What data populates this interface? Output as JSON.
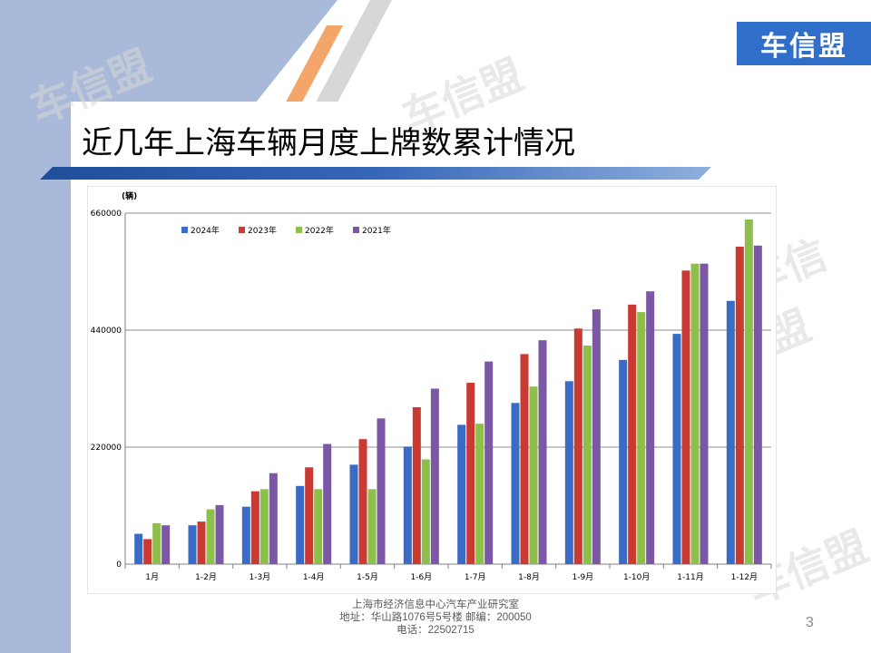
{
  "brand": {
    "logo_text": "车信盟"
  },
  "watermark_text": "车信盟",
  "slide": {
    "title": "近几年上海车辆月度上牌数累计情况",
    "page_number": "3"
  },
  "footer": {
    "line1": "上海市经济信息中心汽车产业研究室",
    "line2": "地址：华山路1076号5号楼    邮编：200050",
    "line3": "电话：22502715"
  },
  "chart_data": {
    "type": "bar",
    "unit_label": "(辆)",
    "categories": [
      "1月",
      "1-2月",
      "1-3月",
      "1-4月",
      "1-5月",
      "1-6月",
      "1-7月",
      "1-8月",
      "1-9月",
      "1-10月",
      "1-11月",
      "1-12月"
    ],
    "series": [
      {
        "name": "2024年",
        "color": "#3a6cc5",
        "values": [
          57000,
          73000,
          108000,
          147000,
          187000,
          221000,
          262000,
          303000,
          344000,
          384000,
          433000,
          495000
        ]
      },
      {
        "name": "2023年",
        "color": "#c83a32",
        "values": [
          47000,
          80000,
          137000,
          182000,
          235000,
          295000,
          341000,
          395000,
          443000,
          488000,
          552000,
          597000
        ]
      },
      {
        "name": "2022年",
        "color": "#8cc04a",
        "values": [
          77000,
          103000,
          141000,
          141000,
          141000,
          197000,
          264000,
          334000,
          411000,
          474000,
          565000,
          648000
        ]
      },
      {
        "name": "2021年",
        "color": "#7b57a6",
        "values": [
          73000,
          111000,
          171000,
          226000,
          274000,
          330000,
          381000,
          421000,
          479000,
          513000,
          565000,
          599000
        ]
      }
    ],
    "yticks": [
      0,
      220000,
      440000,
      660000
    ],
    "ylim": [
      0,
      660000
    ],
    "legend_position": "top-left",
    "grid": true
  }
}
